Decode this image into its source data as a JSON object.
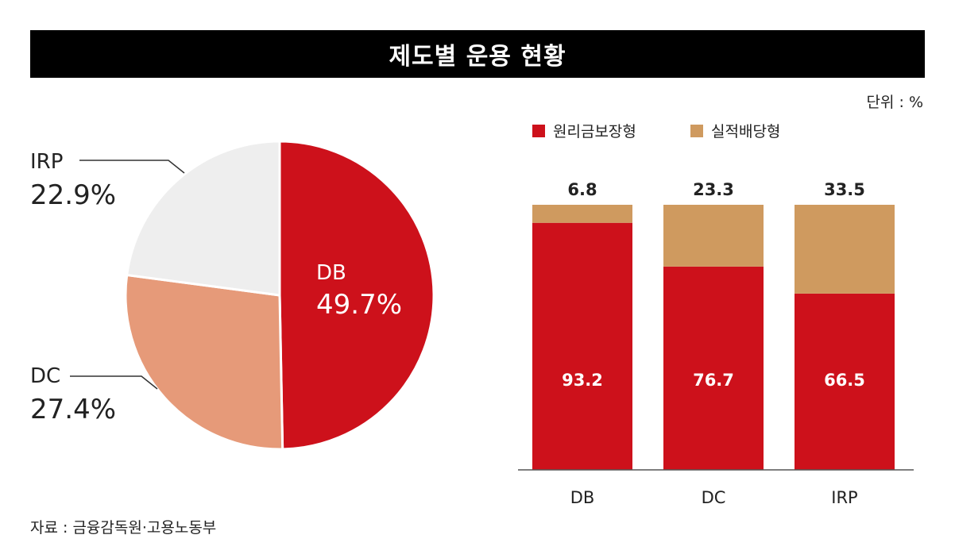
{
  "title": "제도별 운용 현황",
  "unit": "단위 : %",
  "source": "자료 : 금융감독원·고용노동부",
  "colors": {
    "db": "#cd111b",
    "dc": "#e69a79",
    "irp": "#eeeeee",
    "principal": "#cd111b",
    "performance": "#cf9a5f"
  },
  "chart_data": [
    {
      "type": "pie",
      "slices": [
        {
          "label": "DB",
          "value": 49.7,
          "value_label": "49.7%"
        },
        {
          "label": "DC",
          "value": 27.4,
          "value_label": "27.4%"
        },
        {
          "label": "IRP",
          "value": 22.9,
          "value_label": "22.9%"
        }
      ]
    },
    {
      "type": "bar",
      "stacked": true,
      "categories": [
        "DB",
        "DC",
        "IRP"
      ],
      "series": [
        {
          "name": "원리금보장형",
          "values": [
            93.2,
            76.7,
            66.5
          ]
        },
        {
          "name": "실적배당형",
          "values": [
            6.8,
            23.3,
            33.5
          ]
        }
      ],
      "ylim": [
        0,
        100
      ],
      "legend": "top-left"
    }
  ]
}
